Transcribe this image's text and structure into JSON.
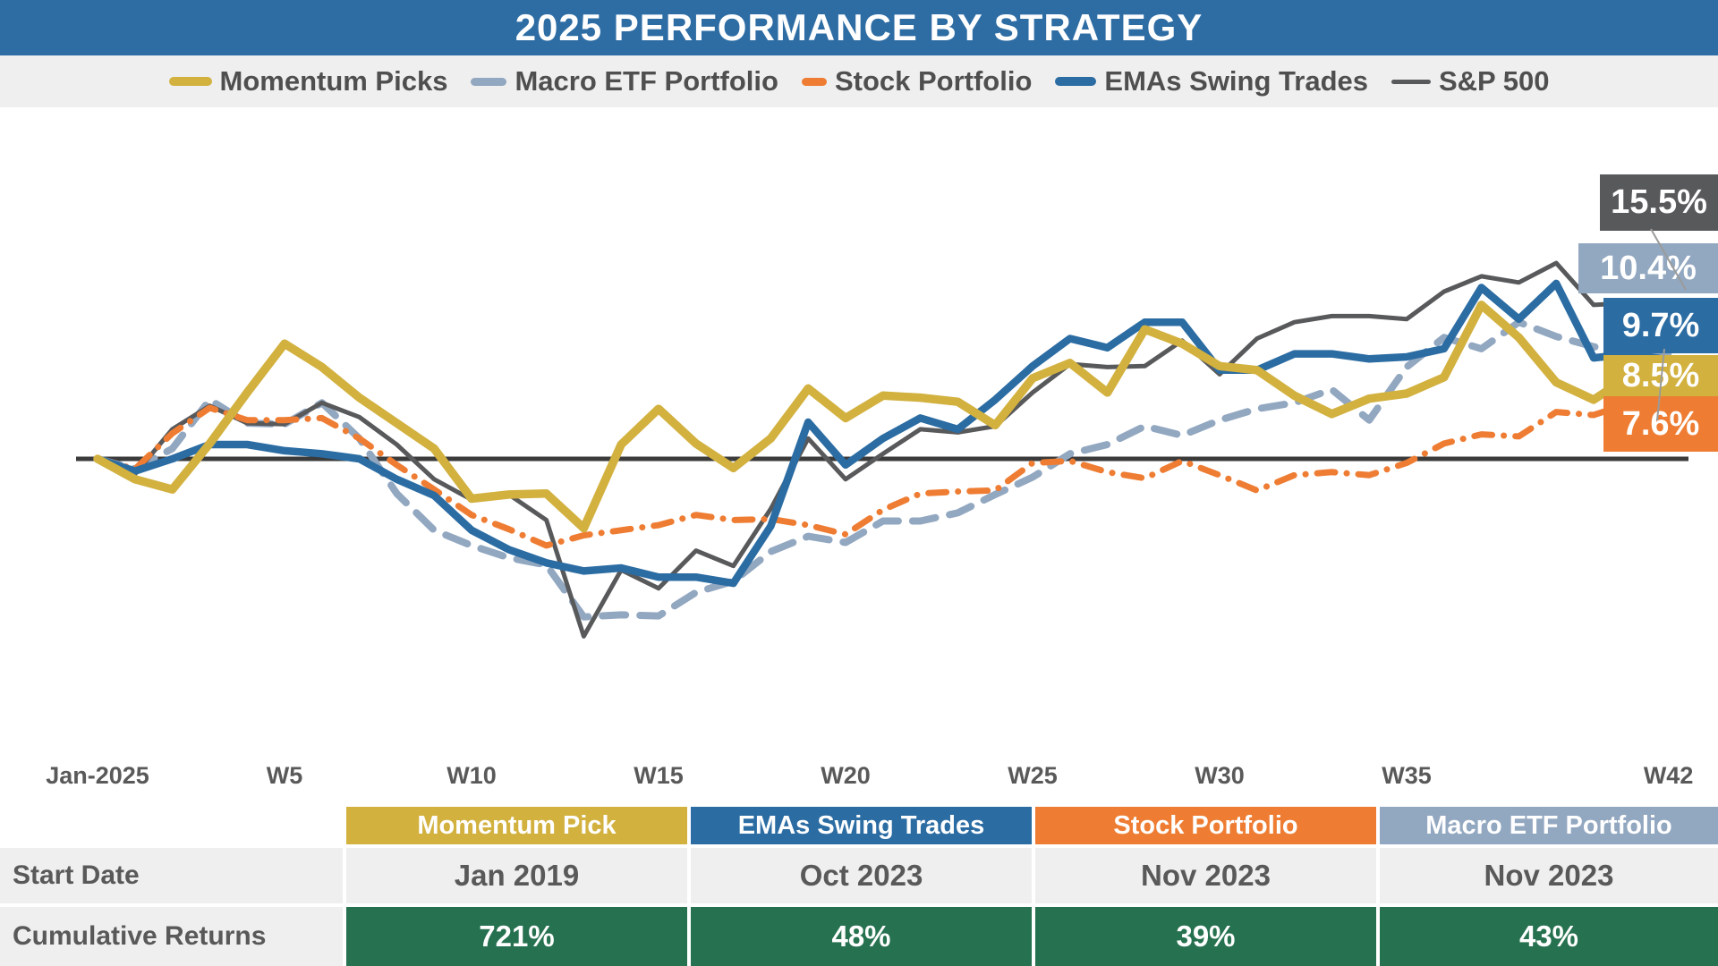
{
  "title": "2025 PERFORMANCE BY STRATEGY",
  "colors": {
    "title_bar": "#2E6DA4",
    "legend_band": "#EFEFEF",
    "momentum": "#D2B13F",
    "emas": "#2B6CA3",
    "stock": "#EE7D33",
    "macro": "#92A7C0",
    "sp500": "#58595B",
    "zero_line": "#3B3B3B",
    "returns_green": "#26714F",
    "axis_text": "#595959"
  },
  "legend": [
    {
      "label": "Momentum Picks",
      "series": "momentum"
    },
    {
      "label": "Macro ETF Portfolio",
      "series": "macro"
    },
    {
      "label": "Stock Portfolio",
      "series": "stock"
    },
    {
      "label": "EMAs Swing Trades",
      "series": "emas"
    },
    {
      "label": "S&P 500",
      "series": "sp500"
    }
  ],
  "chart_data": {
    "type": "line",
    "title": "2025 Performance by Strategy",
    "x_unit": "week",
    "x_ticks": [
      {
        "label": "Jan-2025",
        "week": 0
      },
      {
        "label": "W5",
        "week": 5
      },
      {
        "label": "W10",
        "week": 10
      },
      {
        "label": "W15",
        "week": 15
      },
      {
        "label": "W20",
        "week": 20
      },
      {
        "label": "W25",
        "week": 25
      },
      {
        "label": "W30",
        "week": 30
      },
      {
        "label": "W35",
        "week": 35
      },
      {
        "label": "W42",
        "week": 42
      }
    ],
    "ylim": [
      -20,
      21
    ],
    "y_unit": "%",
    "zero_baseline": true,
    "series": [
      {
        "key": "macro",
        "name": "Macro ETF Portfolio",
        "style": "dashed",
        "end_label": "10.4%",
        "values": [
          0,
          -1,
          1,
          5.8,
          3.5,
          3.4,
          5.5,
          2,
          -3.4,
          -7,
          -8.5,
          -9.7,
          -10.4,
          -15.5,
          -15.3,
          -15.4,
          -13.1,
          -12,
          -9.1,
          -7.6,
          -8.2,
          -6.1,
          -6.1,
          -5.3,
          -3.5,
          -1.8,
          0.5,
          1.4,
          3.2,
          2.3,
          3.8,
          4.9,
          5.5,
          6.8,
          3.8,
          9,
          11.9,
          10.8,
          13.4,
          12,
          11,
          10.5,
          10.4
        ]
      },
      {
        "key": "sp500",
        "name": "S&P 500",
        "style": "solid",
        "end_label": "15.5%",
        "values": [
          0,
          -1.5,
          2.9,
          5.2,
          3.5,
          3.4,
          5.5,
          4.1,
          1.4,
          -2,
          -4,
          -3.5,
          -6,
          -17.4,
          -10.9,
          -12.7,
          -9,
          -10.5,
          -4.9,
          2,
          -2,
          0.5,
          2.9,
          2.6,
          3.2,
          6.5,
          9.3,
          9,
          9.1,
          11.6,
          8.3,
          11.8,
          13.4,
          14,
          14,
          13.7,
          16.4,
          17.9,
          17.3,
          19.2,
          15.1,
          15.3,
          15.5
        ]
      },
      {
        "key": "stock",
        "name": "Stock Portfolio",
        "style": "dash-dot",
        "end_label": "7.6%",
        "values": [
          0,
          -1,
          2.5,
          5,
          3.8,
          3.8,
          4,
          2,
          -0.6,
          -3,
          -5.5,
          -6.9,
          -8.5,
          -7.5,
          -7,
          -6.5,
          -5.5,
          -6,
          -5.9,
          -6.5,
          -7.4,
          -5,
          -3.4,
          -3.2,
          -3.1,
          -0.4,
          -0.2,
          -1.3,
          -1.9,
          -0.2,
          -1.6,
          -3.1,
          -1.6,
          -1.3,
          -1.6,
          -0.4,
          1.5,
          2.4,
          2.2,
          4.6,
          4.3,
          5.5,
          7.6
        ]
      },
      {
        "key": "emas",
        "name": "EMAs Swing Trades",
        "style": "solid",
        "end_label": "9.7%",
        "values": [
          0,
          -1.2,
          0,
          1.4,
          1.4,
          0.8,
          0.5,
          0,
          -2,
          -3.6,
          -7,
          -8.9,
          -10.2,
          -11,
          -10.7,
          -11.6,
          -11.6,
          -12.2,
          -6.6,
          3.6,
          -0.6,
          2,
          4,
          2.9,
          5.8,
          9.1,
          11.8,
          10.9,
          13.4,
          13.4,
          8.7,
          8.7,
          10.3,
          10.3,
          9.8,
          10,
          10.8,
          16.8,
          13.7,
          17.2,
          9.9,
          10.3,
          9.7
        ]
      },
      {
        "key": "momentum",
        "name": "Momentum Picks",
        "style": "solid",
        "end_label": "8.5%",
        "values": [
          0,
          -2,
          -3,
          1.5,
          6.5,
          11.3,
          9,
          6,
          3.5,
          1,
          -3.9,
          -3.5,
          -3.4,
          -6.8,
          1.4,
          4.9,
          1.5,
          -0.9,
          2,
          6.9,
          4,
          6.2,
          6,
          5.6,
          3.3,
          7.9,
          9.4,
          6.5,
          12.7,
          11.3,
          9.1,
          8.7,
          6.2,
          4.4,
          5.9,
          6.4,
          8,
          15.1,
          11.9,
          7.5,
          5.8,
          8.2,
          8.5
        ]
      }
    ],
    "end_labels_top_to_bottom": [
      {
        "text": "15.5%",
        "series": "sp500"
      },
      {
        "text": "10.4%",
        "series": "macro"
      },
      {
        "text": "9.7%",
        "series": "emas"
      },
      {
        "text": "8.5%",
        "series": "momentum"
      },
      {
        "text": "7.6%",
        "series": "stock"
      }
    ]
  },
  "table": {
    "row_headers": [
      "Start Date",
      "Cumulative Returns"
    ],
    "columns": [
      {
        "header": "Momentum Pick",
        "series": "momentum",
        "start_date": "Jan 2019",
        "cumulative_return": "721%"
      },
      {
        "header": "EMAs Swing Trades",
        "series": "emas",
        "start_date": "Oct 2023",
        "cumulative_return": "48%"
      },
      {
        "header": "Stock Portfolio",
        "series": "stock",
        "start_date": "Nov 2023",
        "cumulative_return": "39%"
      },
      {
        "header": "Macro ETF Portfolio",
        "series": "macro",
        "start_date": "Nov 2023",
        "cumulative_return": "43%"
      }
    ]
  }
}
